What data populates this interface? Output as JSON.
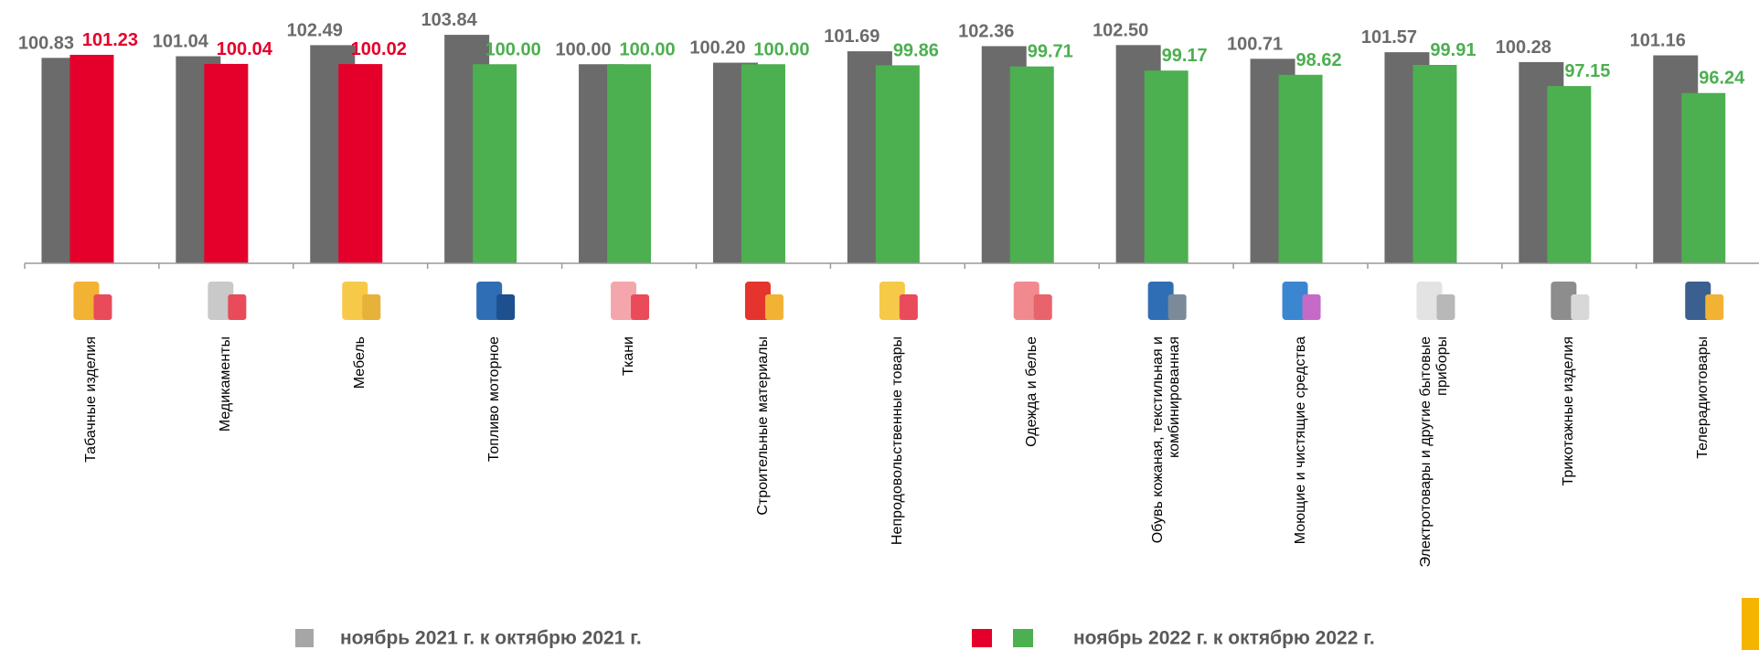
{
  "chart_data": {
    "type": "bar",
    "categories": [
      "Табачные изделия",
      "Медикаменты",
      "Мебель",
      "Топливо моторное",
      "Ткани",
      "Строительные материалы",
      "Непродовольственные товары",
      "Одежда и белье",
      "Обувь кожаная, текстильная и\nкомбинированная",
      "Моющие и чистящие средства",
      "Электротовары и другие бытовые\nприборы",
      "Трикотажные изделия",
      "Телерадиотовары"
    ],
    "series": [
      {
        "name": "ноябрь 2021 г. к октябрю 2021 г.",
        "color": "#6b6b6b",
        "values": [
          100.83,
          101.04,
          102.49,
          103.84,
          100.0,
          100.2,
          101.69,
          102.36,
          102.5,
          100.71,
          101.57,
          100.28,
          101.16
        ],
        "value_labels": [
          "100.83",
          "101.04",
          "102.49",
          "103.84",
          "100.00",
          "100.20",
          "101.69",
          "102.36",
          "102.50",
          "100.71",
          "101.57",
          "100.28",
          "101.16"
        ]
      },
      {
        "name": "ноябрь 2022 г. к октябрю 2022 г.",
        "colors": [
          "#e4002b",
          "#e4002b",
          "#e4002b",
          "#4caf50",
          "#4caf50",
          "#4caf50",
          "#4caf50",
          "#4caf50",
          "#4caf50",
          "#4caf50",
          "#4caf50",
          "#4caf50",
          "#4caf50"
        ],
        "values": [
          101.23,
          100.04,
          100.02,
          100.0,
          100.0,
          100.0,
          99.86,
          99.71,
          99.17,
          98.62,
          99.91,
          97.15,
          96.24
        ],
        "value_labels": [
          "101.23",
          "100.04",
          "100.02",
          "100.00",
          "100.00",
          "100.00",
          "99.86",
          "99.71",
          "99.17",
          "98.62",
          "99.91",
          "97.15",
          "96.24"
        ]
      }
    ],
    "ylim": [
      74,
      106
    ]
  }
}
